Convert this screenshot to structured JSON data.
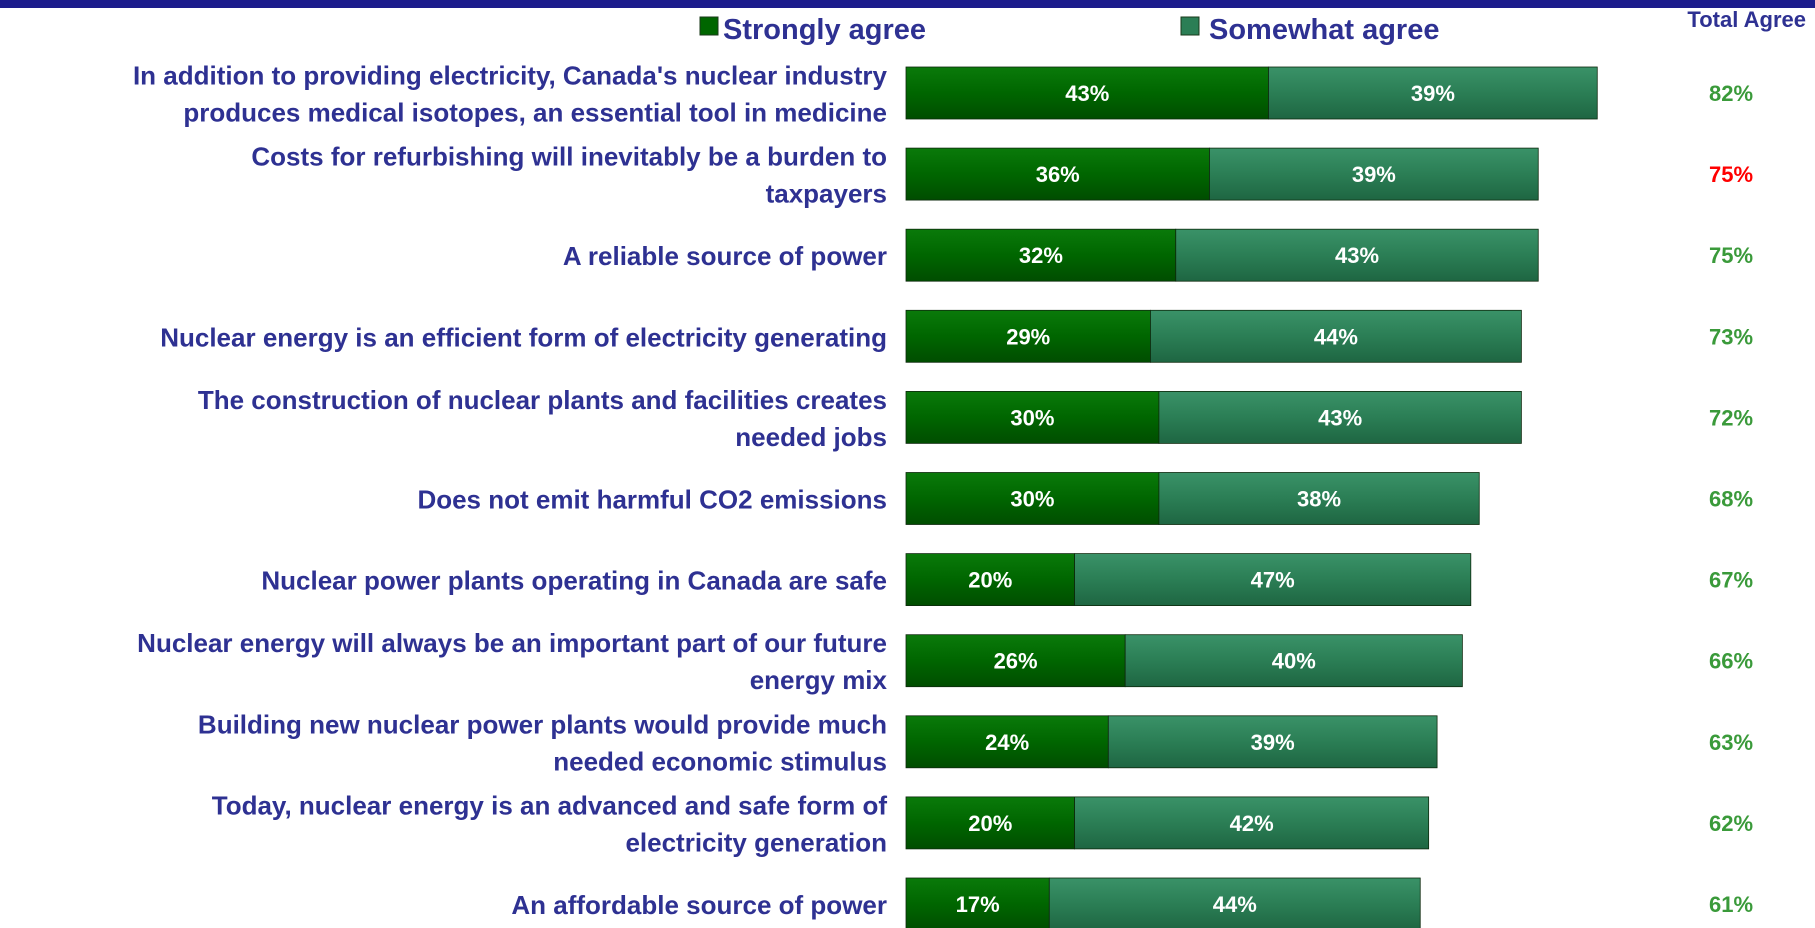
{
  "chart_data": {
    "type": "bar",
    "orientation": "horizontal",
    "stacked": true,
    "title": "",
    "xlabel": "",
    "ylabel": "",
    "legend_position": "top",
    "grid": false,
    "total_header": "Total Agree",
    "categories": [
      [
        "In addition to providing electricity, Canada's nuclear industry",
        "produces medical isotopes, an essential tool in medicine"
      ],
      [
        "Costs for refurbishing will inevitably be a burden to",
        "taxpayers"
      ],
      [
        "A reliable source of power"
      ],
      [
        "Nuclear energy is an efficient form of electricity generating"
      ],
      [
        "The construction of nuclear plants and facilities creates",
        "needed jobs"
      ],
      [
        "Does not emit harmful CO2 emissions"
      ],
      [
        "Nuclear power plants operating in Canada are safe"
      ],
      [
        "Nuclear energy will always be an important part of our future",
        "energy mix"
      ],
      [
        "Building new nuclear power plants would provide much",
        "needed economic stimulus"
      ],
      [
        "Today, nuclear energy is an advanced and safe form of",
        "electricity generation"
      ],
      [
        "An affordable source of power"
      ]
    ],
    "series": [
      {
        "name": "Strongly agree",
        "color": "#006600",
        "values": [
          43,
          36,
          32,
          29,
          30,
          30,
          20,
          26,
          24,
          20,
          17
        ]
      },
      {
        "name": "Somewhat agree",
        "color": "#2b7e55",
        "values": [
          39,
          39,
          43,
          44,
          43,
          38,
          47,
          40,
          39,
          42,
          44
        ]
      }
    ],
    "totals": [
      "82%",
      "75%",
      "75%",
      "73%",
      "72%",
      "68%",
      "67%",
      "66%",
      "63%",
      "62%",
      "61%"
    ],
    "totals_colors": [
      "#3a9a3a",
      "#ff0000",
      "#3a9a3a",
      "#3a9a3a",
      "#3a9a3a",
      "#3a9a3a",
      "#3a9a3a",
      "#3a9a3a",
      "#3a9a3a",
      "#3a9a3a",
      "#3a9a3a"
    ]
  }
}
